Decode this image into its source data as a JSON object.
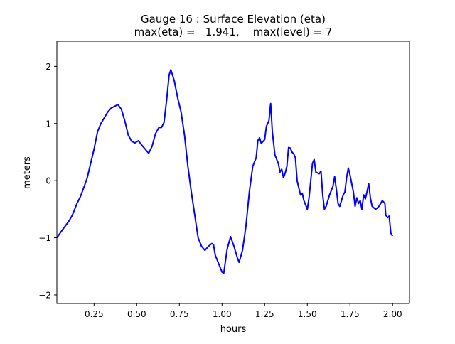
{
  "chart_data": {
    "type": "line",
    "title": "Gauge 16 : Surface Elevation (eta)",
    "subtitle": "max(eta) =   1.941,    max(level) = 7",
    "xlabel": "hours",
    "ylabel": "meters",
    "xlim": [
      0.032,
      2.099
    ],
    "ylim": [
      -2.15,
      2.44
    ],
    "xticks": [
      0.25,
      0.5,
      0.75,
      1.0,
      1.25,
      1.5,
      1.75,
      2.0
    ],
    "xtick_labels": [
      "0.25",
      "0.50",
      "0.75",
      "1.00",
      "1.25",
      "1.50",
      "1.75",
      "2.00"
    ],
    "yticks": [
      -2,
      -1,
      0,
      1,
      2
    ],
    "ytick_labels": [
      "−2",
      "−1",
      "0",
      "1",
      "2"
    ],
    "grid": false,
    "series": [
      {
        "name": "eta",
        "color": "#0000ff",
        "x": [
          0.032,
          0.06,
          0.1,
          0.12,
          0.13,
          0.15,
          0.17,
          0.19,
          0.21,
          0.23,
          0.25,
          0.27,
          0.29,
          0.31,
          0.33,
          0.35,
          0.37,
          0.39,
          0.41,
          0.43,
          0.45,
          0.47,
          0.49,
          0.51,
          0.53,
          0.55,
          0.57,
          0.59,
          0.61,
          0.63,
          0.645,
          0.66,
          0.675,
          0.69,
          0.7,
          0.72,
          0.74,
          0.76,
          0.78,
          0.8,
          0.82,
          0.84,
          0.86,
          0.88,
          0.9,
          0.92,
          0.94,
          0.95,
          0.96,
          0.98,
          1.0,
          1.01,
          1.03,
          1.05,
          1.07,
          1.09,
          1.1,
          1.12,
          1.14,
          1.16,
          1.18,
          1.2,
          1.21,
          1.22,
          1.23,
          1.25,
          1.26,
          1.275,
          1.285,
          1.295,
          1.31,
          1.33,
          1.34,
          1.35,
          1.36,
          1.37,
          1.38,
          1.39,
          1.4,
          1.41,
          1.42,
          1.43,
          1.44,
          1.46,
          1.47,
          1.48,
          1.5,
          1.51,
          1.52,
          1.53,
          1.54,
          1.55,
          1.57,
          1.58,
          1.59,
          1.6,
          1.61,
          1.63,
          1.65,
          1.66,
          1.67,
          1.68,
          1.69,
          1.71,
          1.72,
          1.73,
          1.74,
          1.75,
          1.77,
          1.78,
          1.79,
          1.8,
          1.81,
          1.82,
          1.83,
          1.84,
          1.85,
          1.86,
          1.87,
          1.88,
          1.9,
          1.91,
          1.92,
          1.94,
          1.955,
          1.96,
          1.97,
          1.98,
          1.99,
          2.0
        ],
        "y": [
          -1.0,
          -0.88,
          -0.72,
          -0.62,
          -0.55,
          -0.4,
          -0.28,
          -0.12,
          0.05,
          0.3,
          0.55,
          0.85,
          1.0,
          1.1,
          1.2,
          1.27,
          1.3,
          1.33,
          1.25,
          1.05,
          0.8,
          0.69,
          0.66,
          0.7,
          0.62,
          0.55,
          0.48,
          0.6,
          0.82,
          0.93,
          0.93,
          1.02,
          1.4,
          1.85,
          1.94,
          1.75,
          1.45,
          1.2,
          0.8,
          0.25,
          -0.2,
          -0.6,
          -1.0,
          -1.15,
          -1.22,
          -1.15,
          -1.1,
          -1.12,
          -1.3,
          -1.45,
          -1.6,
          -1.62,
          -1.2,
          -0.98,
          -1.15,
          -1.35,
          -1.43,
          -1.22,
          -0.8,
          -0.2,
          0.25,
          0.4,
          0.7,
          0.75,
          0.65,
          0.72,
          0.95,
          1.05,
          1.35,
          0.85,
          0.45,
          0.3,
          0.15,
          0.2,
          0.05,
          0.13,
          0.25,
          0.58,
          0.57,
          0.5,
          0.47,
          0.4,
          0.0,
          -0.25,
          -0.22,
          -0.35,
          -0.5,
          -0.3,
          0.0,
          0.3,
          0.37,
          0.15,
          0.12,
          0.17,
          -0.25,
          -0.5,
          -0.45,
          -0.25,
          -0.1,
          0.07,
          -0.15,
          -0.4,
          -0.45,
          -0.25,
          -0.2,
          0.05,
          0.22,
          0.1,
          -0.2,
          -0.45,
          -0.3,
          -0.4,
          -0.35,
          -0.5,
          -0.25,
          -0.32,
          -0.2,
          -0.05,
          -0.3,
          -0.45,
          -0.5,
          -0.48,
          -0.45,
          -0.35,
          -0.4,
          -0.6,
          -0.65,
          -0.62,
          -0.92,
          -0.97
        ]
      }
    ]
  }
}
